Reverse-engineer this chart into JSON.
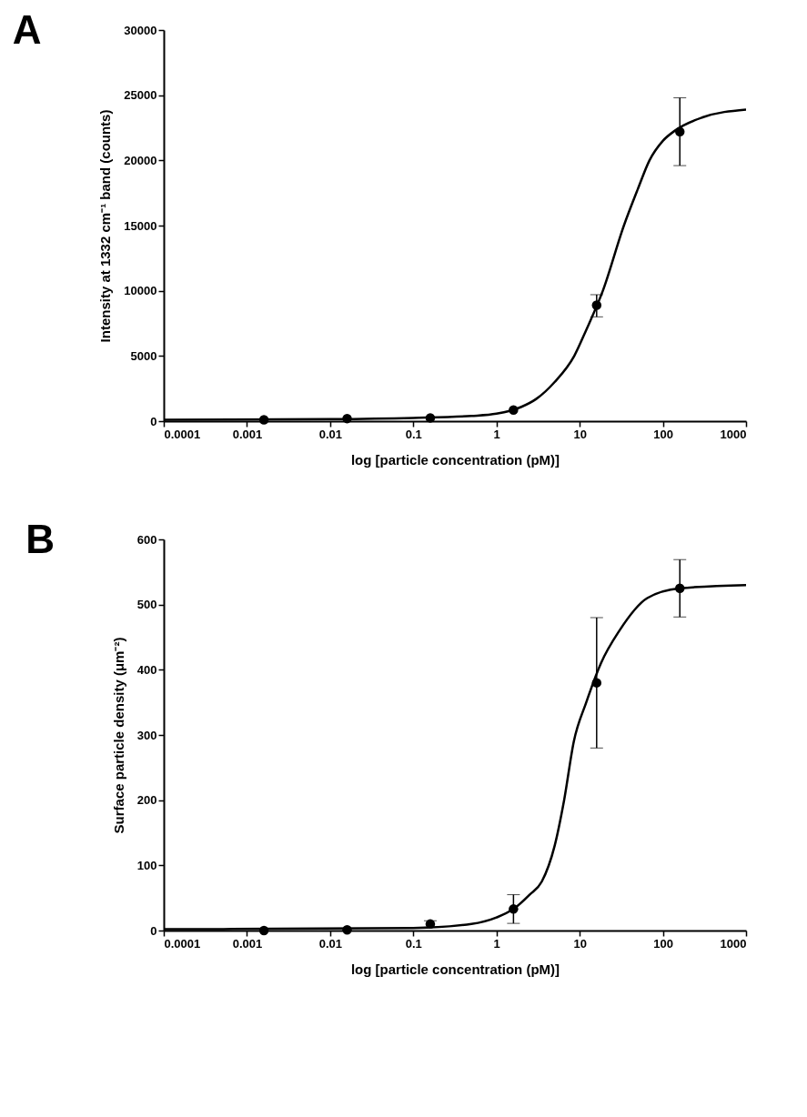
{
  "chart_data": [
    {
      "type": "scatter",
      "title": "A",
      "xlabel": "log [particle concentration (pM)]",
      "ylabel": "Intensity at 1332 cm⁻¹ band (counts)",
      "log": "x",
      "grid": false,
      "line_style": "solid",
      "xlim": [
        0.0001,
        1000
      ],
      "xticks": [
        0.0001,
        0.001,
        0.01,
        0.1,
        1,
        10,
        100,
        1000
      ],
      "ylim": [
        0,
        30000
      ],
      "yticks": [
        0,
        5000,
        10000,
        15000,
        20000,
        25000,
        30000
      ],
      "series": [
        {
          "marker": "circle",
          "color": "#000000",
          "x": [
            0.0016,
            0.016,
            0.16,
            1.6,
            16,
            160
          ],
          "values": [
            100,
            200,
            250,
            850,
            8900,
            22200
          ],
          "errors": [
            null,
            null,
            null,
            null,
            [
              8000,
              9700
            ],
            [
              19600,
              24800
            ]
          ]
        },
        {
          "type": "line",
          "color": "#000000",
          "x": [
            0.0001,
            0.01,
            0.1,
            0.5,
            1,
            2,
            3,
            5,
            8.6,
            12,
            19,
            34,
            50,
            69,
            100,
            141,
            300,
            1000
          ],
          "values": [
            100,
            150,
            250,
            400,
            570,
            1100,
            1700,
            3000,
            5000,
            7000,
            10000,
            15000,
            17800,
            20000,
            21500,
            22300,
            23300,
            23900
          ]
        }
      ]
    },
    {
      "type": "scatter",
      "title": "B",
      "xlabel": "log [particle concentration (pM)]",
      "ylabel": "Surface particle density (μm⁻²)",
      "log": "x",
      "grid": false,
      "line_style": "solid",
      "xlim": [
        0.0001,
        1000
      ],
      "xticks": [
        0.0001,
        0.001,
        0.01,
        0.1,
        1,
        10,
        100,
        1000
      ],
      "ylim": [
        0,
        600
      ],
      "yticks": [
        0,
        100,
        200,
        300,
        400,
        500,
        600
      ],
      "series": [
        {
          "marker": "circle",
          "color": "#000000",
          "x": [
            0.0016,
            0.016,
            0.16,
            1.6,
            16,
            160
          ],
          "values": [
            0,
            1,
            10,
            33,
            380,
            525
          ],
          "errors": [
            null,
            null,
            5,
            22,
            100,
            44
          ]
        },
        {
          "type": "line",
          "color": "#000000",
          "x": [
            0.0001,
            0.1,
            0.5,
            1,
            1.6,
            2.5,
            3.5,
            5,
            6.5,
            8.5,
            12,
            18,
            30,
            65,
            160,
            1000
          ],
          "values": [
            2,
            4,
            10,
            20,
            33,
            55,
            75,
            130,
            200,
            290,
            350,
            410,
            460,
            510,
            525,
            530
          ]
        }
      ]
    }
  ]
}
